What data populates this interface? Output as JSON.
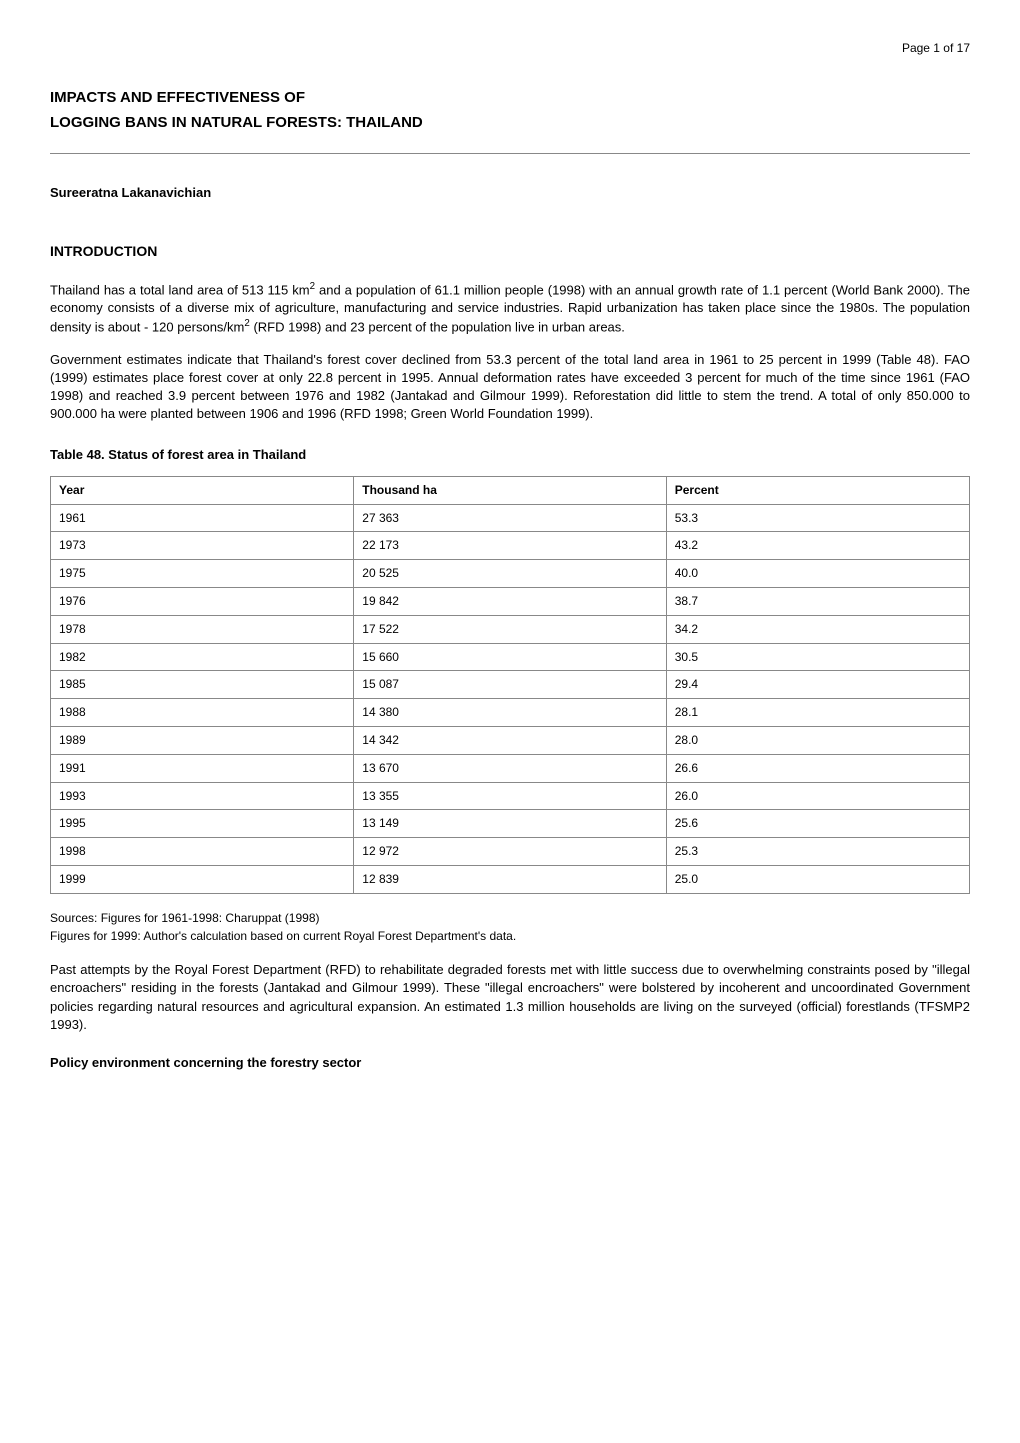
{
  "pageNumber": "Page 1 of 17",
  "title": "IMPACTS AND EFFECTIVENESS OF",
  "subtitle": "LOGGING BANS IN NATURAL FORESTS: THAILAND",
  "author": "Sureeratna Lakanavichian",
  "intro": {
    "heading": "INTRODUCTION",
    "para1_a": "Thailand has a total land area of 513 115 km",
    "para1_b": " and a population of 61.1 million people (1998) with an annual growth rate of 1.1 percent (World Bank 2000). The economy consists of a diverse mix of agriculture, manufacturing and service industries. Rapid urbanization has taken place since the 1980s. The population density is about - 120 persons/km",
    "para1_c": " (RFD 1998) and 23 percent of the population live in urban areas.",
    "sup": "2",
    "para2": "Government estimates indicate that Thailand's forest cover declined from 53.3 percent of the total land area in 1961 to 25 percent in 1999 (Table 48). FAO (1999) estimates place forest cover at only 22.8 percent in 1995. Annual deformation rates have exceeded 3 percent for much of the time since 1961 (FAO 1998) and reached 3.9 percent between 1976 and 1982 (Jantakad and Gilmour 1999). Reforestation did little to stem the trend. A total of only 850.000 to 900.000 ha were planted between 1906 and 1996 (RFD 1998; Green World Foundation 1999)."
  },
  "table": {
    "title": "Table 48. Status of forest area in Thailand",
    "columns": [
      "Year",
      "Thousand ha",
      "Percent"
    ],
    "col_widths": [
      "33%",
      "34%",
      "33%"
    ],
    "rows": [
      [
        "1961",
        "27 363",
        "53.3"
      ],
      [
        "1973",
        "22 173",
        "43.2"
      ],
      [
        "1975",
        "20 525",
        "40.0"
      ],
      [
        "1976",
        "19 842",
        "38.7"
      ],
      [
        "1978",
        "17 522",
        "34.2"
      ],
      [
        "1982",
        "15 660",
        "30.5"
      ],
      [
        "1985",
        "15 087",
        "29.4"
      ],
      [
        "1988",
        "14 380",
        "28.1"
      ],
      [
        "1989",
        "14 342",
        "28.0"
      ],
      [
        "1991",
        "13 670",
        "26.6"
      ],
      [
        "1993",
        "13 355",
        "26.0"
      ],
      [
        "1995",
        "13 149",
        "25.6"
      ],
      [
        "1998",
        "12 972",
        "25.3"
      ],
      [
        "1999",
        "12 839",
        "25.0"
      ]
    ],
    "border_color": "#888888",
    "header_bg": "#ffffff",
    "cell_bg": "#ffffff",
    "font_size": 12
  },
  "sources": {
    "line1": "Sources: Figures for 1961-1998: Charuppat (1998)",
    "line2": "Figures for 1999: Author's calculation based on current Royal Forest Department's data."
  },
  "para3": "Past attempts by the Royal Forest Department (RFD) to rehabilitate degraded forests met with little success due to overwhelming constraints posed by \"illegal encroachers\" residing in the forests (Jantakad and Gilmour 1999). These \"illegal encroachers\" were bolstered by incoherent and uncoordinated Government policies regarding natural resources and agricultural expansion. An estimated 1.3 million households are living on the surveyed (official) forestlands (TFSMP2 1993).",
  "subsection": "Policy environment concerning the forestry sector"
}
